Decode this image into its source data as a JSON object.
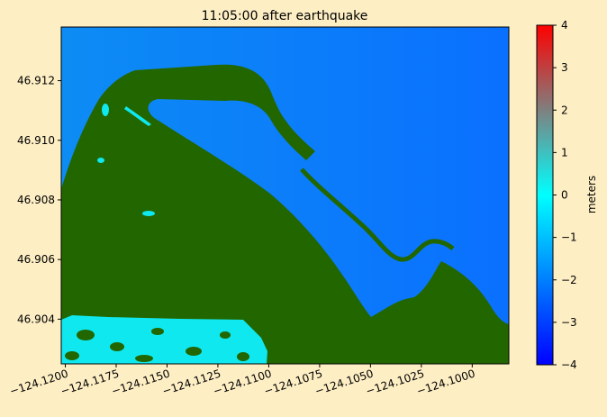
{
  "chart_data": {
    "type": "heatmap",
    "title": "11:05:00 after earthquake",
    "xlabel": "",
    "ylabel": "",
    "xlim": [
      -124.1202,
      -124.0982
    ],
    "ylim": [
      46.9025,
      46.9138
    ],
    "x_ticks": [
      -124.12,
      -124.1175,
      -124.115,
      -124.1125,
      -124.11,
      -124.1075,
      -124.105,
      -124.1025,
      -124.1
    ],
    "x_tick_labels": [
      "−124.1200",
      "−124.1175",
      "−124.1150",
      "−124.1125",
      "−124.1100",
      "−124.1075",
      "−124.1050",
      "−124.1025",
      "−124.1000"
    ],
    "y_ticks": [
      46.904,
      46.906,
      46.908,
      46.91,
      46.912
    ],
    "y_tick_labels": [
      "46.904",
      "46.906",
      "46.908",
      "46.910",
      "46.912"
    ],
    "colorbar": {
      "label": "meters",
      "range": [
        -4,
        4
      ],
      "ticks": [
        -4,
        -3,
        -2,
        -1,
        0,
        1,
        2,
        3,
        4
      ],
      "tick_labels": [
        "−4",
        "−3",
        "−2",
        "−1",
        "0",
        "1",
        "2",
        "3",
        "4"
      ],
      "colors": [
        "#0000ff",
        "#00ffff",
        "#ff0000"
      ]
    },
    "land_color": "#226600",
    "water_color": "#0a6cff",
    "grid": false
  }
}
